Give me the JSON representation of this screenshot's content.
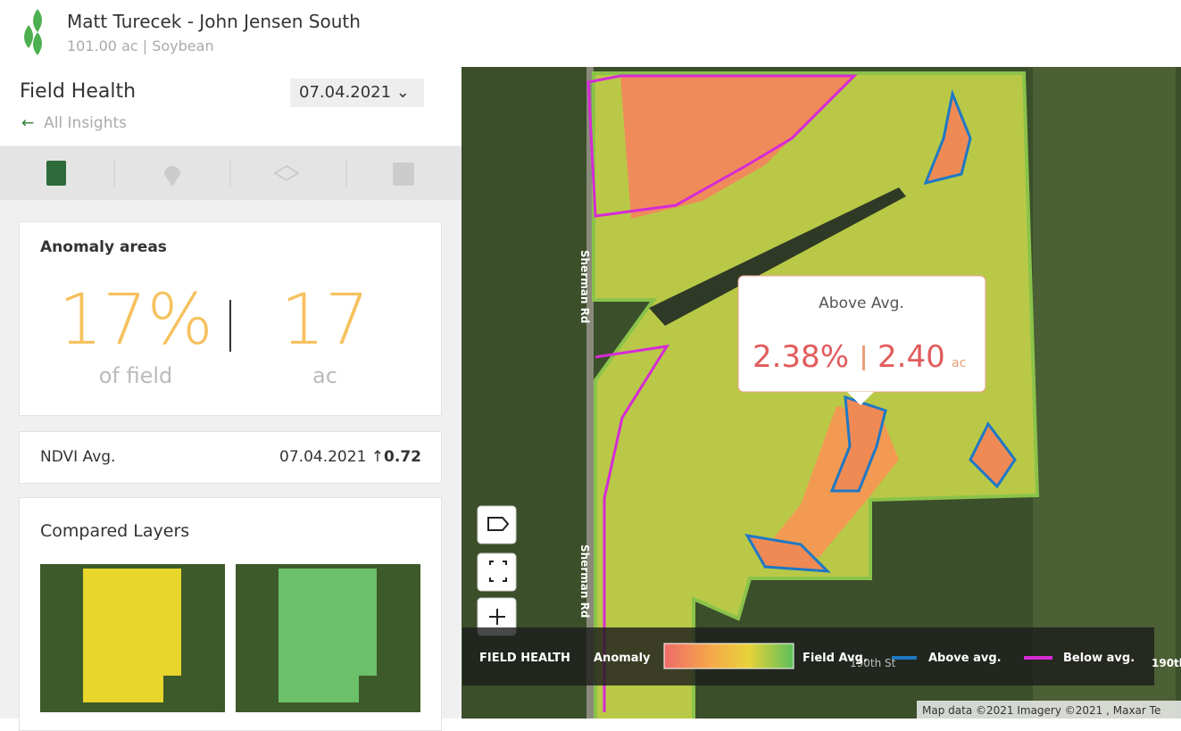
{
  "header": {
    "title": "Matt Turecek - John Jensen South",
    "subtitle": "101.00 ac | Soybean"
  },
  "panel": {
    "title": "Field Health",
    "date": "07.04.2021",
    "back": "All Insights"
  },
  "anomaly": {
    "title": "Anomaly areas",
    "percent": "17%",
    "percent_label": "of field",
    "acres": "17",
    "acres_label": "ac"
  },
  "ndvi": {
    "label": "NDVI Avg.",
    "date": "07.04.2021",
    "value": "0.72"
  },
  "compared": {
    "title": "Compared Layers"
  },
  "map": {
    "roads": [
      "Sherman Rd",
      "Sherman Rd",
      "190th St",
      "190th"
    ],
    "tooltip": {
      "title": "Above Avg.",
      "percent": "2.38%",
      "acres": "2.40",
      "unit": "ac"
    },
    "legend": {
      "title": "FIELD HEALTH",
      "anomaly": "Anomaly",
      "field_avg": "Field Avg.",
      "above": "Above avg.",
      "below": "Below avg."
    },
    "attribution": "Map data ©2021 Imagery ©2021 , Maxar Te"
  }
}
